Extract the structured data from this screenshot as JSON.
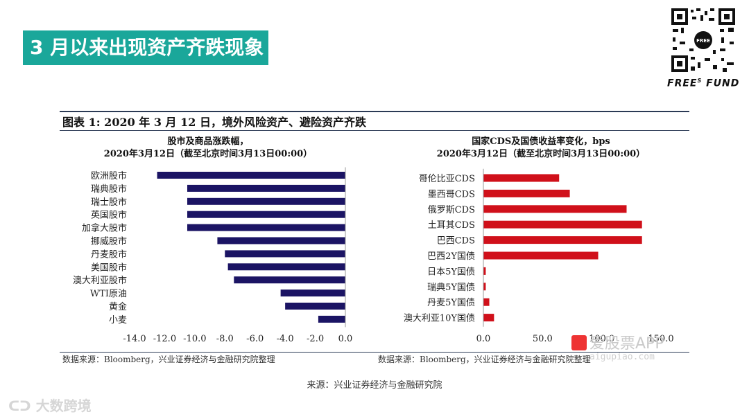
{
  "banner": {
    "title": "3 月以来出现资产齐跌现象"
  },
  "brand": {
    "name": "FREE",
    "sup": "S",
    "suffix": "FUND"
  },
  "figure": {
    "title": "图表 1: 2020 年 3 月 12 日，境外风险资产、避险资产齐跌"
  },
  "left_source": "数据来源：Bloomberg，兴业证券经济与金融研究院整理",
  "right_source": "数据来源：Bloomberg，兴业证券经济与金融研究院整理",
  "caption": "来源：兴业证券经济与金融研究院",
  "watermarks": {
    "app": "爱股票APP",
    "url": "aigupiao.com",
    "corner": "大数跨境"
  },
  "colors": {
    "banner": "#1aa79a",
    "left_bars": "#1b1464",
    "right_bars": "#d0101a"
  },
  "chart_data": [
    {
      "type": "bar",
      "orientation": "horizontal",
      "title": "股市及商品涨跌幅，",
      "subtitle": "2020年3月12日（截至北京时间3月13日00:00）",
      "categories": [
        "欧洲股市",
        "瑞典股市",
        "瑞士股市",
        "英国股市",
        "加拿大股市",
        "挪威股市",
        "丹麦股市",
        "美国股市",
        "澳大利亚股市",
        "WTI原油",
        "黄金",
        "小麦"
      ],
      "values": [
        -12.5,
        -10.5,
        -10.5,
        -10.5,
        -10.5,
        -8.5,
        -8.0,
        -7.8,
        -7.4,
        -4.3,
        -4.0,
        -1.8
      ],
      "xlim": [
        -14.0,
        0.0
      ],
      "xticks": [
        "-14.0",
        "-12.0",
        "-10.0",
        "-8.0",
        "-6.0",
        "-4.0",
        "-2.0",
        "0.0"
      ],
      "tick_values": [
        -14,
        -12,
        -10,
        -8,
        -6,
        -4,
        -2,
        0
      ]
    },
    {
      "type": "bar",
      "orientation": "horizontal",
      "title": "国家CDS及国债收益率变化，bps",
      "subtitle": "2020年3月12日（截至北京时间3月13日00:00）",
      "categories": [
        "哥伦比亚CDS",
        "墨西哥CDS",
        "俄罗斯CDS",
        "土耳其CDS",
        "巴西CDS",
        "巴西2Y国债",
        "日本5Y国债",
        "瑞典5Y国债",
        "丹麦5Y国债",
        "澳大利亚10Y国债"
      ],
      "values": [
        64,
        73,
        121,
        134,
        134,
        97,
        2,
        2,
        5,
        9
      ],
      "xlim": [
        0,
        150.0
      ],
      "xticks": [
        "0.0",
        "50.0",
        "100.0",
        "150.0"
      ],
      "tick_values": [
        0,
        50,
        100,
        150
      ]
    }
  ]
}
